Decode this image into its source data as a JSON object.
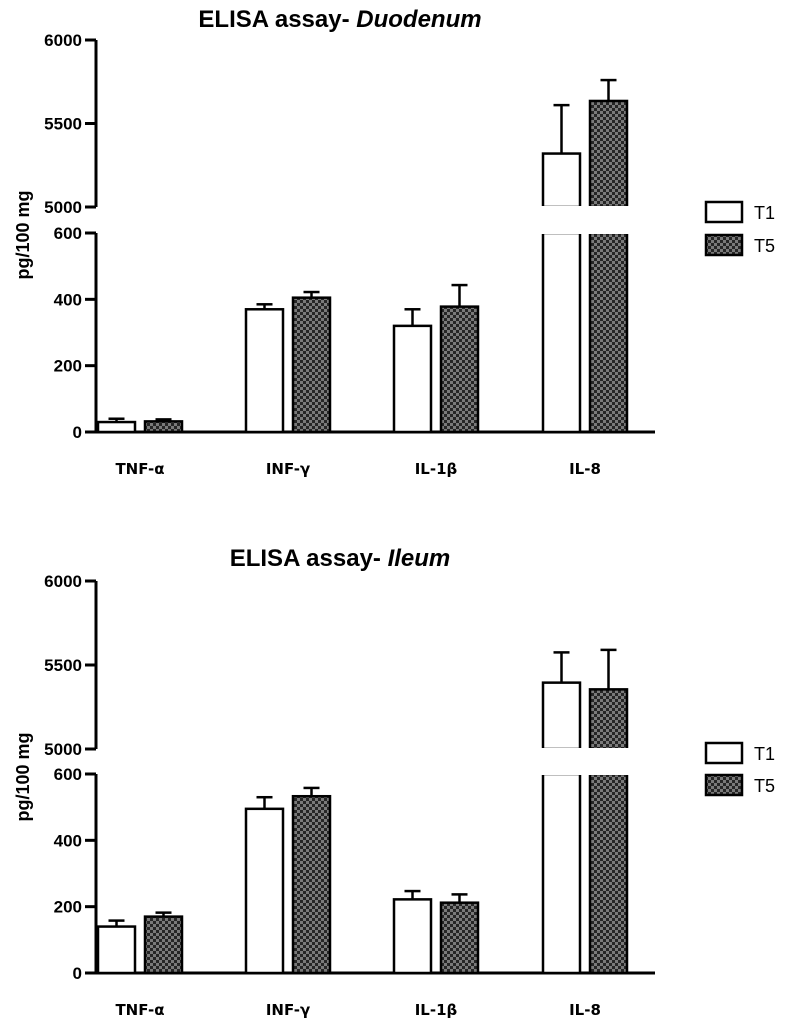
{
  "chart_data": [
    {
      "type": "bar",
      "title": "ELISA assay- ",
      "title_italic": "Duodenum",
      "ylabel": "pg/100 mg",
      "categories": [
        "TNF-α",
        "INF-γ",
        "IL-1β",
        "IL-8"
      ],
      "y_axis_segments": [
        {
          "range": [
            0,
            600
          ],
          "ticks": [
            "0",
            "200",
            "400",
            "600"
          ]
        },
        {
          "range": [
            5000,
            6000
          ],
          "ticks": [
            "5000",
            "5500",
            "6000"
          ]
        }
      ],
      "series": [
        {
          "name": "T1",
          "fill": "white",
          "values": [
            30,
            370,
            320,
            5320
          ],
          "errors": [
            10,
            15,
            50,
            290
          ]
        },
        {
          "name": "T5",
          "fill": "checkered",
          "values": [
            32,
            405,
            378,
            5635
          ],
          "errors": [
            6,
            17,
            65,
            125
          ]
        }
      ],
      "legend_position": "right",
      "grid": false
    },
    {
      "type": "bar",
      "title": "ELISA assay- ",
      "title_italic": "Ileum",
      "ylabel": "pg/100 mg",
      "categories": [
        "TNF-α",
        "INF-γ",
        "IL-1β",
        "IL-8"
      ],
      "y_axis_segments": [
        {
          "range": [
            0,
            600
          ],
          "ticks": [
            "0",
            "200",
            "400",
            "600"
          ]
        },
        {
          "range": [
            5000,
            6000
          ],
          "ticks": [
            "5000",
            "5500",
            "6000"
          ]
        }
      ],
      "series": [
        {
          "name": "T1",
          "fill": "white",
          "values": [
            140,
            495,
            222,
            5395
          ],
          "errors": [
            18,
            35,
            25,
            180
          ]
        },
        {
          "name": "T5",
          "fill": "checkered",
          "values": [
            170,
            533,
            212,
            5355
          ],
          "errors": [
            12,
            25,
            25,
            235
          ]
        }
      ],
      "legend_position": "right",
      "grid": false
    }
  ]
}
